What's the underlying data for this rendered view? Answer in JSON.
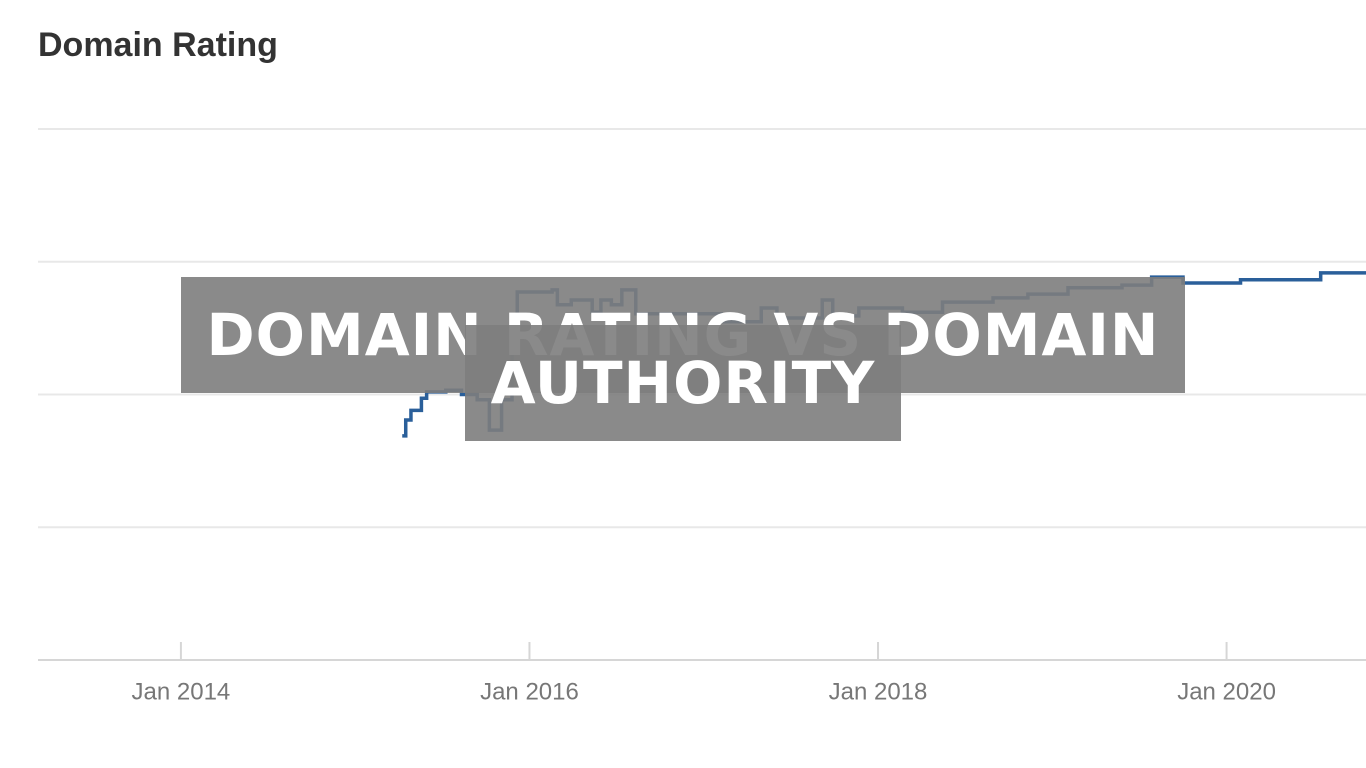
{
  "chart_data": {
    "type": "line",
    "title": "Domain Rating",
    "annotation": "DOMAIN RATING VS DOMAIN AUTHORITY",
    "step": "after",
    "series": [
      {
        "name": "Domain Rating",
        "color": "#2a5f9a",
        "x": [
          2015.27,
          2015.29,
          2015.32,
          2015.38,
          2015.41,
          2015.52,
          2015.61,
          2015.7,
          2015.77,
          2015.84,
          2015.9,
          2015.93,
          2016.13,
          2016.16,
          2016.24,
          2016.36,
          2016.41,
          2016.47,
          2016.53,
          2016.61,
          2016.99,
          2017.1,
          2017.33,
          2017.42,
          2017.68,
          2017.74,
          2017.89,
          2018.14,
          2018.37,
          2018.66,
          2018.86,
          2019.09,
          2019.4,
          2019.57,
          2019.75,
          2020.08,
          2020.54,
          2020.8
        ],
        "values": [
          42.2,
          45.2,
          47,
          49.3,
          50.5,
          50.8,
          50,
          49,
          43.3,
          49,
          62,
          69.3,
          69.7,
          66.9,
          67.8,
          65.5,
          67.8,
          66.9,
          69.7,
          65.2,
          65.2,
          63.7,
          66.3,
          64.4,
          67.8,
          64.8,
          66.3,
          65.5,
          67.4,
          68.2,
          68.9,
          70.1,
          70.6,
          72.1,
          71,
          71.6,
          72.9,
          73.1
        ]
      }
    ],
    "xlim": [
      2013.18,
      2020.8
    ],
    "xticks": [
      {
        "value": 2014,
        "label": "Jan 2014"
      },
      {
        "value": 2016,
        "label": "Jan 2016"
      },
      {
        "value": 2018,
        "label": "Jan 2018"
      },
      {
        "value": 2020,
        "label": "Jan 2020"
      }
    ],
    "ylim": [
      0,
      100
    ],
    "yticks": [
      0,
      25,
      50,
      75,
      100
    ],
    "grid": true
  }
}
